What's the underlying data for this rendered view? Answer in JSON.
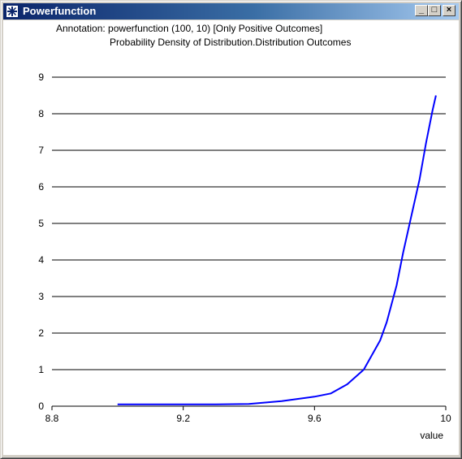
{
  "window": {
    "title": "Powerfunction",
    "controls": {
      "minimize": "_",
      "maximize": "□",
      "close": "×"
    }
  },
  "annotation": {
    "line1": "Annotation: powerfunction (100, 10) [Only Positive Outcomes]",
    "line2": "Probability Density of Distribution.Distribution Outcomes"
  },
  "chart_data": {
    "type": "line",
    "xlabel": "value",
    "ylabel": "",
    "xlim": [
      8.8,
      10.0
    ],
    "ylim": [
      0,
      9
    ],
    "x_ticks": [
      8.8,
      9.2,
      9.6,
      10
    ],
    "x_tick_labels": [
      "8.8",
      "9.2",
      "9.6",
      "10"
    ],
    "y_ticks": [
      0,
      1,
      2,
      3,
      4,
      5,
      6,
      7,
      8,
      9
    ],
    "grid": "horizontal",
    "series": [
      {
        "color": "#0000ff",
        "x": [
          9.0,
          9.1,
          9.2,
          9.3,
          9.4,
          9.45,
          9.5,
          9.55,
          9.6,
          9.65,
          9.7,
          9.75,
          9.8,
          9.82,
          9.85,
          9.87,
          9.9,
          9.92,
          9.94,
          9.96,
          9.97
        ],
        "y": [
          0.05,
          0.05,
          0.05,
          0.05,
          0.06,
          0.1,
          0.14,
          0.2,
          0.26,
          0.35,
          0.6,
          1.0,
          1.8,
          2.3,
          3.3,
          4.2,
          5.4,
          6.2,
          7.2,
          8.1,
          8.5
        ]
      }
    ]
  }
}
